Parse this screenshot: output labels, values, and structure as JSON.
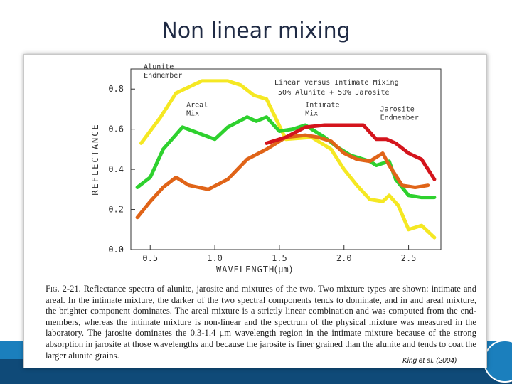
{
  "slide": {
    "title": "Non linear mixing",
    "citation": "King et al. (2004)"
  },
  "caption": {
    "label": "Fig. 2-21.",
    "text": "Reflectance spectra of alunite, jarosite and mixtures of the two. Two mixture types are shown: intimate and areal. In the intimate mixture, the darker of the two spectral components tends to dominate, and in and areal mixture, the brighter component dominates. The areal mixture is a strictly linear combination and was computed from the end-members, whereas the intimate mixture is non-linear and the spectrum of the physical mixture was measured in the laboratory. The jarosite dominates the 0.3-1.4 μm wavelength region in the intimate mixture because of the strong absorption in jarosite at those wavelengths and because the jarosite is finer grained than the alunite and tends to coat the larger alunite grains."
  },
  "chart_data": {
    "type": "line",
    "title": "Linear versus Intimate Mixing",
    "subtitle": "50% Alunite + 50% Jarosite",
    "xlabel": "WAVELENGTH",
    "xlabel_unit": "(μm)",
    "ylabel": "REFLECTANCE",
    "xlim": [
      0.35,
      2.75
    ],
    "ylim": [
      0.0,
      0.9
    ],
    "xticks": [
      0.5,
      1.0,
      1.5,
      2.0,
      2.5
    ],
    "xtick_labels": [
      "0.5",
      "1.0",
      "1.5",
      "2.0",
      "2.5"
    ],
    "yticks": [
      0.0,
      0.2,
      0.4,
      0.6,
      0.8
    ],
    "ytick_labels": [
      "0.0",
      "0.2",
      "0.4",
      "0.6",
      "0.8"
    ],
    "annotations": [
      {
        "text": "Alunite Endmember",
        "x": 0.45,
        "y": 0.9
      },
      {
        "text": "Areal Mix",
        "x": 0.78,
        "y": 0.71
      },
      {
        "text": "Intimate Mix",
        "x": 1.7,
        "y": 0.71
      },
      {
        "text": "Jarosite Endmember",
        "x": 2.28,
        "y": 0.69
      }
    ],
    "series": [
      {
        "name": "Alunite Endmember",
        "color": "#f5e823",
        "x": [
          0.43,
          0.58,
          0.7,
          0.9,
          1.1,
          1.2,
          1.3,
          1.4,
          1.55,
          1.75,
          1.9,
          2.0,
          2.1,
          2.2,
          2.3,
          2.35,
          2.42,
          2.5,
          2.6,
          2.7
        ],
        "y": [
          0.53,
          0.66,
          0.78,
          0.84,
          0.84,
          0.82,
          0.77,
          0.75,
          0.55,
          0.56,
          0.5,
          0.4,
          0.32,
          0.25,
          0.24,
          0.27,
          0.22,
          0.1,
          0.12,
          0.06
        ]
      },
      {
        "name": "Areal Mix",
        "color": "#2ed12e",
        "x": [
          0.4,
          0.5,
          0.6,
          0.75,
          1.0,
          1.1,
          1.25,
          1.32,
          1.4,
          1.5,
          1.6,
          1.7,
          1.85,
          1.95,
          2.05,
          2.2,
          2.25,
          2.35,
          2.4,
          2.5,
          2.6,
          2.7
        ],
        "y": [
          0.31,
          0.36,
          0.5,
          0.61,
          0.55,
          0.61,
          0.66,
          0.64,
          0.66,
          0.59,
          0.6,
          0.62,
          0.56,
          0.51,
          0.47,
          0.44,
          0.42,
          0.44,
          0.35,
          0.27,
          0.26,
          0.26
        ]
      },
      {
        "name": "Intimate Mix",
        "color": "#e06418",
        "x": [
          0.4,
          0.5,
          0.6,
          0.7,
          0.8,
          0.95,
          1.1,
          1.25,
          1.4,
          1.55,
          1.7,
          1.8,
          1.9,
          2.0,
          2.1,
          2.2,
          2.3,
          2.35,
          2.45,
          2.55,
          2.65
        ],
        "y": [
          0.16,
          0.24,
          0.31,
          0.36,
          0.32,
          0.3,
          0.35,
          0.45,
          0.5,
          0.56,
          0.57,
          0.56,
          0.54,
          0.48,
          0.45,
          0.44,
          0.48,
          0.42,
          0.32,
          0.31,
          0.32
        ]
      },
      {
        "name": "Jarosite Endmember",
        "color": "#d4141c",
        "x": [
          1.4,
          1.55,
          1.7,
          1.85,
          2.0,
          2.15,
          2.25,
          2.33,
          2.4,
          2.5,
          2.6,
          2.7
        ],
        "y": [
          0.53,
          0.56,
          0.61,
          0.62,
          0.62,
          0.62,
          0.55,
          0.55,
          0.53,
          0.48,
          0.45,
          0.35
        ]
      }
    ]
  }
}
